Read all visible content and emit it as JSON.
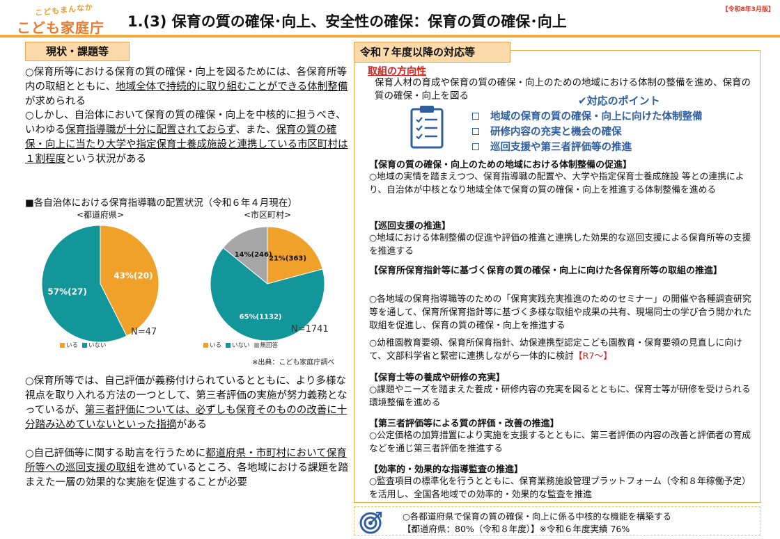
{
  "header": {
    "logo_small": "こどもまんなか",
    "logo_main": "こども家庭庁",
    "title": "1.(3) 保育の質の確保･向上、安全性の確保：保育の質の確保･向上",
    "date_tag": "【令和8年3月版】"
  },
  "left": {
    "tab": "現状・課題等",
    "p1": {
      "a": "○保育所等における保育の質の確保・向上を図るためには、各保育所等内の取組とともに、",
      "u1": "地域全体で持続的に取り組むことができる体制整備",
      "b": "が求められる"
    },
    "p2": {
      "a": "○しかし、自治体において保育の質の確保・向上を中核的に担うべき、いわゆる",
      "u1": "保育指導職が十分に配置されておらず",
      "b": "、また、",
      "u2": "保育の質の確保・向上に当たり大学や指定保育士養成施設と連携している市区町村は１割程度",
      "c": "という状況がある"
    },
    "chart_heading": "■各自治体における保育指導職の配置状況（令和６年４月現在）",
    "source": "※出典：こども家庭庁調べ",
    "p3": {
      "a": "○保育所等では、自己評価が義務付けられているとともに、より多様な視点を取り入れる方法の一つとして、第三者評価の実施が努力義務となっているが、",
      "u1": "第三者評価については、必ずしも保育そのものの改善に十分踏み込めていないといった指摘",
      "b": "がある"
    },
    "p4": {
      "a": "○自己評価等に関する助言を行うために",
      "u1": "都道府県・市町村において保育所等への巡回支援の取組",
      "b": "を進めているところ、各地域における課題を踏まえた一層の効果的な実施を促進することが必要"
    }
  },
  "chart_data": [
    {
      "type": "pie",
      "title": "<都道府県>",
      "labels": [
        "いる",
        "いない"
      ],
      "values": [
        20,
        27
      ],
      "data_labels": [
        "43%(20)",
        "57%(27)"
      ],
      "colors": [
        "#f0a12a",
        "#13969a"
      ],
      "n_label": "N=47",
      "legend_placement": "bottom-left",
      "legend": [
        "いる",
        "いない"
      ]
    },
    {
      "type": "pie",
      "title": "<市区町村>",
      "labels": [
        "いる",
        "いない",
        "無回答"
      ],
      "values": [
        363,
        1132,
        246
      ],
      "data_labels": [
        "21%(363)",
        "65%(1132)",
        "14%(246)"
      ],
      "colors": [
        "#f0a12a",
        "#13969a",
        "#a6a6a6"
      ],
      "n_label": "N=1741",
      "legend_placement": "bottom-left",
      "legend": [
        "いる",
        "いない",
        "無回答"
      ]
    }
  ],
  "right": {
    "tab": "令和７年度以降の対応等",
    "dir_title": "取組の方向性",
    "dir_text": "保育人材の育成や保育の質の確保・向上のための地域における体制の整備を進め、保育の質の確保・向上を図る",
    "points_title": "✔対応のポイント",
    "points": [
      "地域の保育の質の確保・向上に向けた体制整備",
      "研修内容の充実と機会の確保",
      "巡回支援や第三者評価等の推進"
    ],
    "sections": [
      {
        "h": "【保育の質の確保・向上のための地域における体制整備の促進】",
        "t": "○地域の実情を踏まえつつ、保育指導職の配置や、大学や指定保育士養成施設 等との連携により、自治体が中核となり地域全体で保育の質の確保・向上を推進する体制整備を進める"
      },
      {
        "h": "【巡回支援の推進】",
        "t": "○地域における体制整備の促進や評価の推進と連携した効果的な巡回支援による保育所等の支援を推進する"
      },
      {
        "h": "【保育所保育指針等に基づく保育の質の確保・向上に向けた各保育所等の取組の推進】",
        "t": "○各地域の保育指導職等のための「保育実践充実推進のためのセミナー」の開催や各種調査研究等を通して、保育所保育指針等に基づく多様な取組や成果の共有、現場同士の学び合う開かれた取組を促進し、保育の質の確保・向上を推進する",
        "t2": "○幼稚園教育要領、保育所保育指針、幼保連携型認定こども園教育・保育要領の見直しに向けて、文部科学省と緊密に連携しながら一体的に検討",
        "t2_red": "【R7～】"
      },
      {
        "h": "【保育士等の養成や研修の充実】",
        "t": "○課題やニーズを踏まえた養成・研修内容の充実を図るとともに、保育士等が研修を受けられる環境整備を進める"
      },
      {
        "h": "【第三者評価等による質の評価・改善の推進】",
        "t": "○公定価格の加算措置により実施を支援するとともに、第三者評価の内容の改善と評価者の育成などを通じ第三者評価を推進する"
      },
      {
        "h": "【効率的・効果的な指導監査の推進】",
        "t": "○監査項目の標準化を行うとともに、保育業務施設管理プラットフォーム（令和８年稼働予定）を活用し、全国各地域での効率的・効果的な監査を推進"
      }
    ]
  },
  "goal": {
    "line1": "○各都道府県で保育の質の確保・向上に係る中核的な機能を構築する",
    "line2": "【都道府県：80%（令和８年度）】※令和６年度実績 76%"
  },
  "icons": [
    "target-icon",
    "clipboard-icon",
    "checkbox-icon"
  ]
}
